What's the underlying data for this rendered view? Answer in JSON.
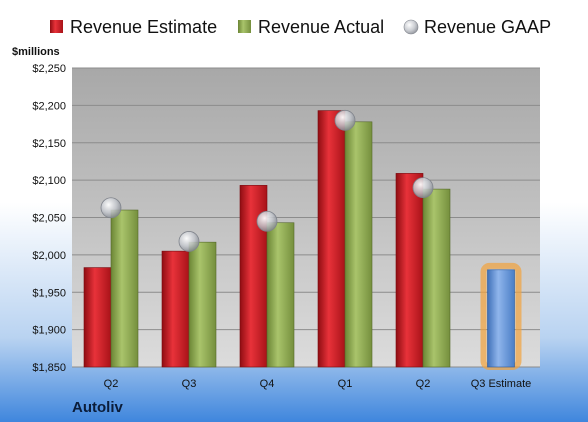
{
  "chart_data": {
    "type": "bar",
    "company": "Autoliv",
    "unit_label": "$millions",
    "categories": [
      "Q2",
      "Q3",
      "Q4",
      "Q1",
      "Q2",
      "Q3 Estimate"
    ],
    "series": [
      {
        "name": "Revenue Estimate",
        "kind": "bar",
        "color": "#c0141c",
        "values": [
          1983,
          2005,
          2093,
          2193,
          2109,
          null
        ]
      },
      {
        "name": "Revenue Actual",
        "kind": "bar",
        "color": "#8aa64c",
        "values": [
          2060,
          2017,
          2043,
          2178,
          2088,
          null
        ]
      },
      {
        "name": "Revenue GAAP",
        "kind": "marker",
        "color": "#b8bcc4",
        "values": [
          2063,
          2018,
          2045,
          2180,
          2090,
          null
        ]
      },
      {
        "name": "",
        "kind": "bar",
        "color": "#5b8ed4",
        "highlight": "#f2a33c",
        "values": [
          null,
          null,
          null,
          null,
          null,
          1980
        ]
      }
    ],
    "ylim": [
      1850,
      2250
    ],
    "yticks": [
      1850,
      1900,
      1950,
      2000,
      2050,
      2100,
      2150,
      2200,
      2250
    ],
    "ytick_labels": [
      "$1,850",
      "$1,900",
      "$1,950",
      "$2,000",
      "$2,050",
      "$2,100",
      "$2,150",
      "$2,200",
      "$2,250"
    ],
    "grid": true,
    "legend": "top",
    "title": "",
    "xlabel": "",
    "ylabel": ""
  }
}
